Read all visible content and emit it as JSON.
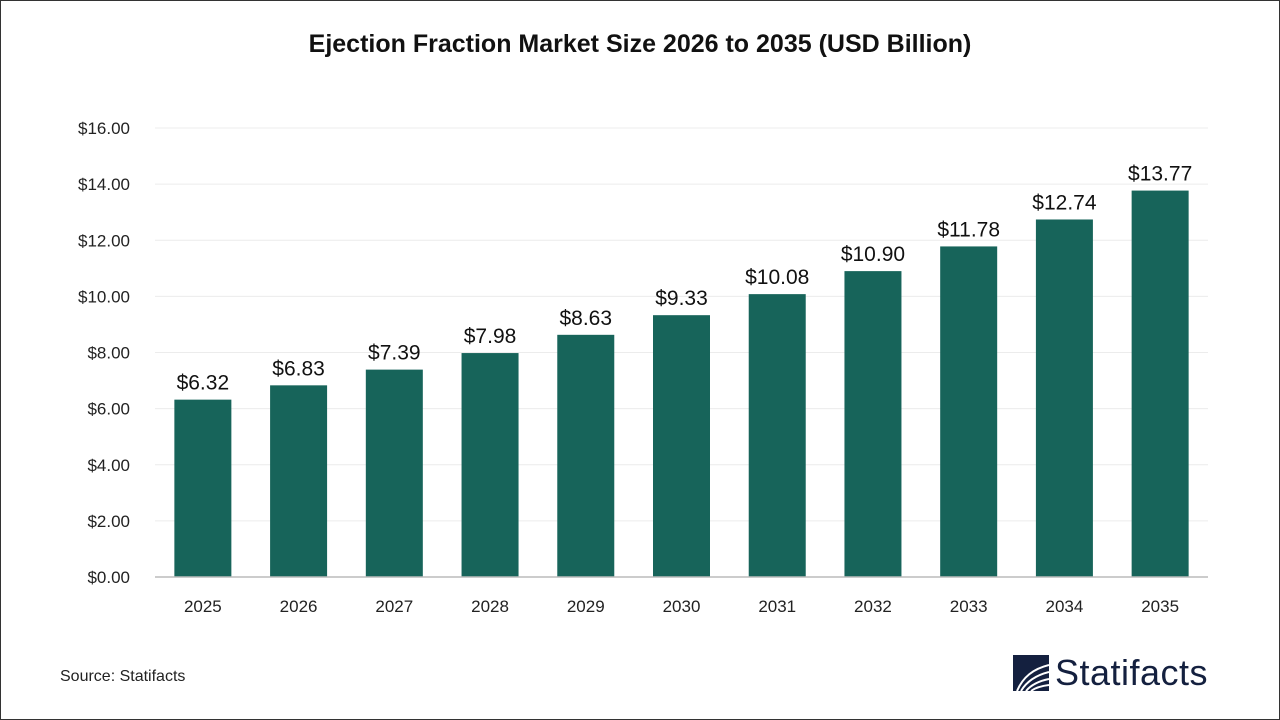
{
  "chart_data": {
    "type": "bar",
    "title": "Ejection Fraction Market Size 2026 to 2035 (USD Billion)",
    "categories": [
      "2025",
      "2026",
      "2027",
      "2028",
      "2029",
      "2030",
      "2031",
      "2032",
      "2033",
      "2034",
      "2035"
    ],
    "values": [
      6.32,
      6.83,
      7.39,
      7.98,
      8.63,
      9.33,
      10.08,
      10.9,
      11.78,
      12.74,
      13.77
    ],
    "data_labels": [
      "$6.32",
      "$6.83",
      "$7.39",
      "$7.98",
      "$8.63",
      "$9.33",
      "$10.08",
      "$10.90",
      "$11.78",
      "$12.74",
      "$13.77"
    ],
    "ylim": [
      0,
      16
    ],
    "yticks": [
      0,
      2,
      4,
      6,
      8,
      10,
      12,
      14,
      16
    ],
    "ytick_labels": [
      "$0.00",
      "$2.00",
      "$4.00",
      "$6.00",
      "$8.00",
      "$10.00",
      "$12.00",
      "$14.00",
      "$16.00"
    ],
    "xlabel": "",
    "ylabel": "",
    "grid": true,
    "bar_color": "#17645a"
  },
  "source": "Source: Statifacts",
  "logo": {
    "text": "Statifacts",
    "color": "#14203f"
  }
}
